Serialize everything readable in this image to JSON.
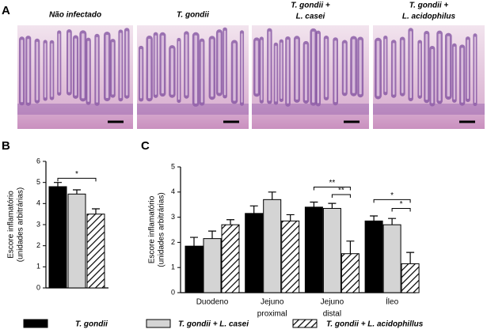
{
  "panel_a": {
    "label": "A",
    "images": [
      {
        "caption": [
          "Não infectado"
        ]
      },
      {
        "caption": [
          "T. gondii"
        ]
      },
      {
        "caption": [
          "T. gondii +",
          "L. casei"
        ]
      },
      {
        "caption": [
          "T. gondii +",
          "L. acidophilus"
        ]
      }
    ]
  },
  "chart_data": [
    {
      "panel": "B",
      "type": "bar",
      "ylabel": [
        "Escore inflamatório",
        "(unidades arbitrárias)"
      ],
      "values": [
        4.8,
        4.45,
        3.5
      ],
      "errors": [
        0.2,
        0.2,
        0.25
      ],
      "colors": [
        "#000000",
        "#d4d4d4",
        "hatch"
      ],
      "ylim": [
        0,
        6
      ],
      "yticks": [
        0,
        1,
        2,
        3,
        4,
        5,
        6
      ],
      "significance": [
        {
          "from": 0,
          "to": 2,
          "y": 5.2,
          "label": "*"
        }
      ]
    },
    {
      "panel": "C",
      "type": "grouped_bar",
      "ylabel": [
        "Escore inflamatório",
        "(unidades arbitrárias)"
      ],
      "categories": [
        [
          "Duodeno"
        ],
        [
          "Jejuno",
          "proximal"
        ],
        [
          "Jejuno",
          "distal"
        ],
        [
          "Íleo"
        ]
      ],
      "series": [
        {
          "name": "T. gondii",
          "color": "#000000",
          "values": [
            1.85,
            3.15,
            3.4,
            2.85
          ],
          "errors": [
            0.35,
            0.3,
            0.2,
            0.2
          ]
        },
        {
          "name": "T. gondii + L. casei",
          "color": "#d4d4d4",
          "values": [
            2.15,
            3.7,
            3.35,
            2.7
          ],
          "errors": [
            0.3,
            0.3,
            0.2,
            0.25
          ]
        },
        {
          "name": "T. gondii + L. acidophillus",
          "color": "hatch",
          "values": [
            2.7,
            2.85,
            1.55,
            1.15
          ],
          "errors": [
            0.2,
            0.25,
            0.5,
            0.45
          ]
        }
      ],
      "ylim": [
        0,
        5
      ],
      "yticks": [
        0,
        1,
        2,
        3,
        4,
        5
      ],
      "significance": [
        {
          "category": 2,
          "from": 0,
          "to": 2,
          "y": 4.2,
          "label": "**"
        },
        {
          "category": 2,
          "from": 1,
          "to": 2,
          "y": 3.9,
          "label": "**"
        },
        {
          "category": 3,
          "from": 0,
          "to": 2,
          "y": 3.7,
          "label": "*"
        },
        {
          "category": 3,
          "from": 1,
          "to": 2,
          "y": 3.35,
          "label": "*"
        }
      ]
    }
  ]
}
